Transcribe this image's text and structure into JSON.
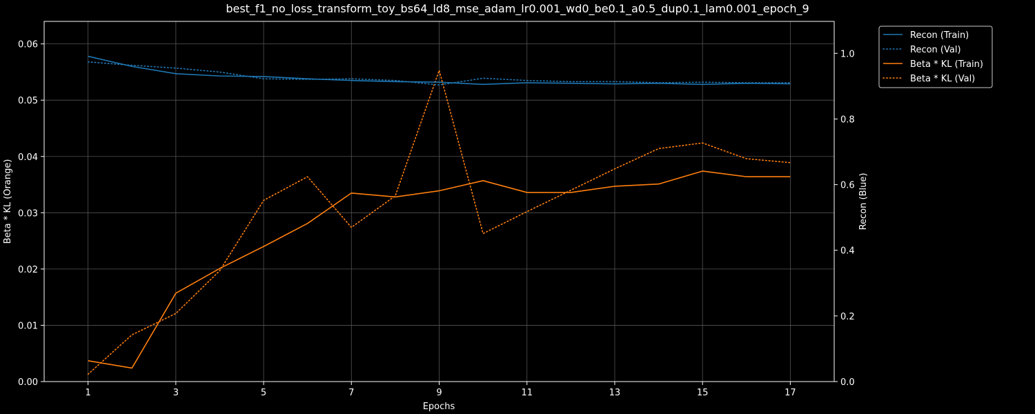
{
  "chart_data": {
    "type": "line",
    "title": "best_f1_no_loss_transform_toy_bs64_ld8_mse_adam_lr0.001_wd0_be0.1_a0.5_dup0.1_lam0.001_epoch_9",
    "xlabel": "Epochs",
    "ylabel_left": "Beta * KL (Orange)",
    "ylabel_right": "Recon (Blue)",
    "xlim": [
      0.0,
      18.0
    ],
    "ylim_left": [
      0.0,
      0.064
    ],
    "ylim_right": [
      0.0,
      1.0973
    ],
    "x_ticks": [
      1,
      3,
      5,
      7,
      9,
      11,
      13,
      15,
      17
    ],
    "x_tick_labels": [
      "1",
      "3",
      "5",
      "7",
      "9",
      "11",
      "13",
      "15",
      "17"
    ],
    "y_left_ticks": [
      0.0,
      0.01,
      0.02,
      0.03,
      0.04,
      0.05,
      0.06
    ],
    "y_left_tick_labels": [
      "0.00",
      "0.01",
      "0.02",
      "0.03",
      "0.04",
      "0.05",
      "0.06"
    ],
    "y_right_ticks": [
      0.0,
      0.2,
      0.4,
      0.6,
      0.8,
      1.0
    ],
    "y_right_tick_labels": [
      "0.0",
      "0.2",
      "0.4",
      "0.6",
      "0.8",
      "1.0"
    ],
    "grid": true,
    "legend_position": "outside-top-right",
    "x": [
      1,
      2,
      3,
      4,
      5,
      6,
      7,
      8,
      9,
      10,
      11,
      12,
      13,
      14,
      15,
      16,
      17
    ],
    "series": [
      {
        "name": "Recon (Train)",
        "axis": "right",
        "style": "solid",
        "color": "#1f77b4",
        "values": [
          0.0578,
          0.056,
          0.0547,
          0.0543,
          0.0542,
          0.0538,
          0.0535,
          0.0533,
          0.0532,
          0.0528,
          0.0531,
          0.053,
          0.0529,
          0.053,
          0.0528,
          0.053,
          0.0529
        ],
        "value_scale": 17.1453
      },
      {
        "name": "Recon (Val)",
        "axis": "right",
        "style": "dotted",
        "color": "#1f77b4",
        "values": [
          0.0568,
          0.0562,
          0.0557,
          0.055,
          0.0538,
          0.0537,
          0.0538,
          0.0535,
          0.0527,
          0.0539,
          0.0535,
          0.0533,
          0.0533,
          0.0531,
          0.0532,
          0.0531,
          0.0531
        ],
        "value_scale": 17.1453
      },
      {
        "name": "Beta * KL (Train)",
        "axis": "left",
        "style": "solid",
        "color": "#ff7f0e",
        "values": [
          0.0037,
          0.0024,
          0.0157,
          0.0201,
          0.024,
          0.0281,
          0.0335,
          0.0328,
          0.0339,
          0.0357,
          0.0336,
          0.0336,
          0.0347,
          0.0351,
          0.0374,
          0.0364,
          0.0364
        ]
      },
      {
        "name": "Beta * KL (Val)",
        "axis": "left",
        "style": "dotted",
        "color": "#ff7f0e",
        "values": [
          0.0013,
          0.0083,
          0.0121,
          0.0197,
          0.0322,
          0.0364,
          0.0274,
          0.033,
          0.0553,
          0.0263,
          0.0302,
          0.034,
          0.0378,
          0.0414,
          0.0424,
          0.0396,
          0.0389
        ]
      }
    ]
  },
  "colors": {
    "background": "#000000",
    "foreground": "#ffffff",
    "grid": "#555555"
  }
}
